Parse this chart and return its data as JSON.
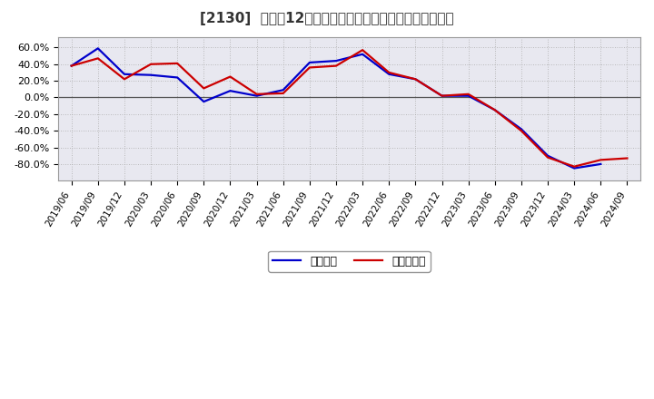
{
  "title": "[2130]  利益の12か月移動合計の対前年同期増減率の推移",
  "x_labels": [
    "2019/06",
    "2019/09",
    "2019/12",
    "2020/03",
    "2020/06",
    "2020/09",
    "2020/12",
    "2021/03",
    "2021/06",
    "2021/09",
    "2021/12",
    "2022/03",
    "2022/06",
    "2022/09",
    "2022/12",
    "2023/03",
    "2023/06",
    "2023/09",
    "2023/12",
    "2024/03",
    "2024/06",
    "2024/09"
  ],
  "blue_data": [
    38,
    59,
    28,
    27,
    24,
    -5,
    8,
    2,
    9,
    42,
    44,
    52,
    28,
    22,
    2,
    2,
    -15,
    -38,
    -70,
    -85,
    -80,
    null
  ],
  "red_data": [
    38,
    47,
    22,
    40,
    41,
    11,
    25,
    4,
    5,
    36,
    38,
    57,
    30,
    22,
    2,
    4,
    -15,
    -40,
    -72,
    -83,
    -75,
    -73
  ],
  "blue_color": "#0000cc",
  "red_color": "#cc0000",
  "background_color": "#ffffff",
  "plot_bg_color": "#e8e8f0",
  "zero_line_color": "#555555",
  "ylim": [
    -100,
    72
  ],
  "yticks": [
    -80,
    -60,
    -40,
    -20,
    0,
    20,
    40,
    60
  ],
  "legend_blue": "経常利益",
  "legend_red": "当期純利益",
  "line_width": 1.6
}
